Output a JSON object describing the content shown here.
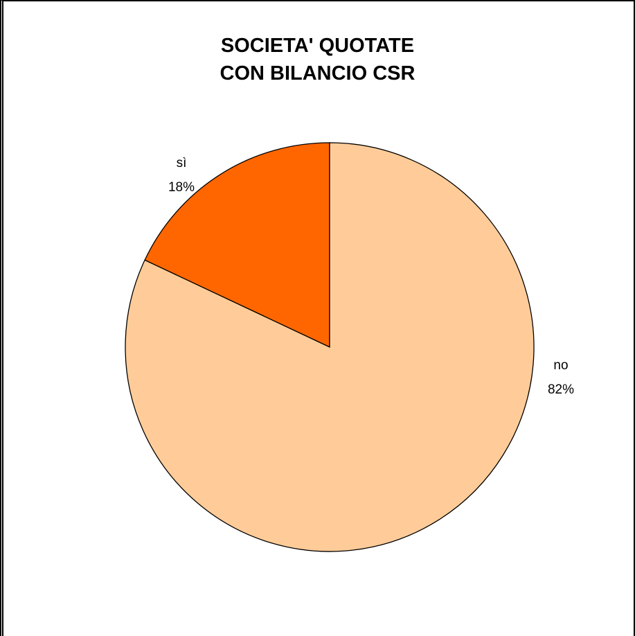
{
  "chart_data": {
    "type": "pie",
    "title_lines": [
      "SOCIETA' QUOTATE",
      "CON BILANCIO CSR"
    ],
    "slices": [
      {
        "label": "sì",
        "value": 18,
        "value_label": "18%",
        "color": "#FF6600"
      },
      {
        "label": "no",
        "value": 82,
        "value_label": "82%",
        "color": "#FFCC99"
      }
    ],
    "start_angle_deg": 0,
    "direction": "counterclockwise",
    "legend": "none"
  }
}
